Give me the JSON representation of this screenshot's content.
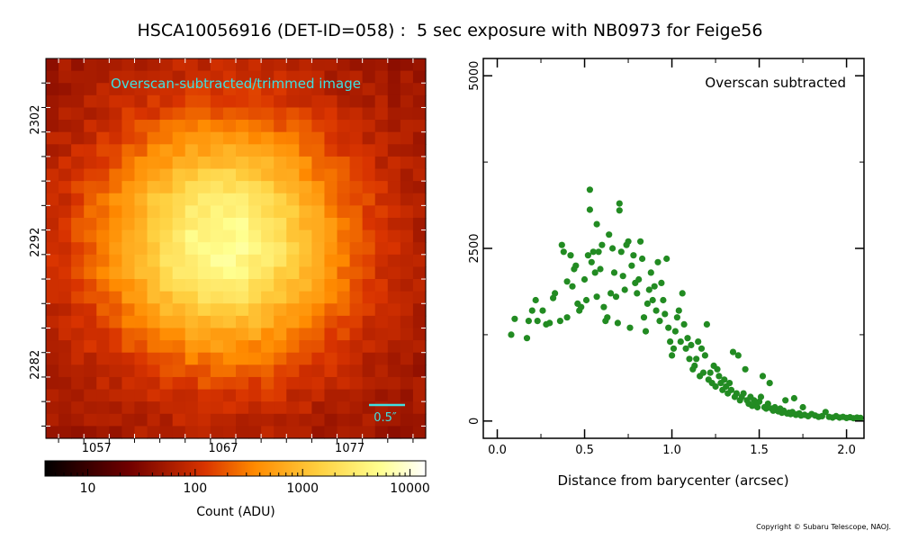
{
  "title": "HSCA10056916 (DET-ID=058) :  5 sec exposure with NB0973 for Feige56",
  "copyright": "Copyright © Subaru Telescope, NAOJ.",
  "colors": {
    "scatter": "#228b22",
    "label_cyan": "#40e0e0",
    "frame": "#000000"
  },
  "chart_data": [
    {
      "type": "heatmap",
      "title": "Overscan-subtracted/trimmed image",
      "colormap": "afmhot",
      "x_ticks": [
        "1057",
        "1067",
        "1077"
      ],
      "y_ticks": [
        "2302",
        "2292",
        "2282"
      ],
      "xlim": [
        1053,
        1083
      ],
      "ylim": [
        2276,
        2307
      ],
      "star_center": {
        "x": 1067,
        "y": 2292
      },
      "scale_bar_label": "0.5″",
      "colorbar": {
        "label": "Count (ADU)",
        "scale": "log",
        "range": [
          4,
          14000
        ],
        "ticks": [
          "10",
          "100",
          "1000",
          "10000"
        ]
      }
    },
    {
      "type": "scatter",
      "annotation": "Overscan subtracted",
      "xlabel": "Distance from barycenter (arcsec)",
      "ylabel": "",
      "xlim": [
        -0.08,
        2.1
      ],
      "ylim": [
        -250,
        5250
      ],
      "x_ticks": [
        0.0,
        0.5,
        1.0,
        1.5,
        2.0
      ],
      "x_tick_labels": [
        "0.0",
        "0.5",
        "1.0",
        "1.5",
        "2.0"
      ],
      "y_ticks": [
        0,
        2500,
        5000
      ],
      "y_tick_labels": [
        "0",
        "2500",
        "5000"
      ],
      "series": [
        {
          "values": [
            [
              0.08,
              1250
            ],
            [
              0.1,
              1480
            ],
            [
              0.17,
              1200
            ],
            [
              0.18,
              1450
            ],
            [
              0.2,
              1600
            ],
            [
              0.22,
              1750
            ],
            [
              0.23,
              1450
            ],
            [
              0.26,
              1600
            ],
            [
              0.28,
              1400
            ],
            [
              0.3,
              1420
            ],
            [
              0.32,
              1780
            ],
            [
              0.33,
              1850
            ],
            [
              0.36,
              1450
            ],
            [
              0.37,
              2550
            ],
            [
              0.38,
              2450
            ],
            [
              0.4,
              2020
            ],
            [
              0.4,
              1500
            ],
            [
              0.42,
              2400
            ],
            [
              0.43,
              1950
            ],
            [
              0.44,
              2200
            ],
            [
              0.45,
              2250
            ],
            [
              0.46,
              1700
            ],
            [
              0.47,
              1600
            ],
            [
              0.48,
              1650
            ],
            [
              0.5,
              2050
            ],
            [
              0.51,
              1750
            ],
            [
              0.52,
              2400
            ],
            [
              0.53,
              3350
            ],
            [
              0.53,
              3060
            ],
            [
              0.54,
              2300
            ],
            [
              0.55,
              2450
            ],
            [
              0.56,
              2150
            ],
            [
              0.57,
              1800
            ],
            [
              0.57,
              2850
            ],
            [
              0.58,
              2450
            ],
            [
              0.59,
              2200
            ],
            [
              0.6,
              2550
            ],
            [
              0.61,
              1650
            ],
            [
              0.62,
              1450
            ],
            [
              0.63,
              1500
            ],
            [
              0.64,
              2700
            ],
            [
              0.65,
              1850
            ],
            [
              0.66,
              2500
            ],
            [
              0.67,
              2150
            ],
            [
              0.68,
              1800
            ],
            [
              0.69,
              1420
            ],
            [
              0.7,
              3150
            ],
            [
              0.7,
              3050
            ],
            [
              0.71,
              2450
            ],
            [
              0.72,
              2100
            ],
            [
              0.73,
              1900
            ],
            [
              0.74,
              2550
            ],
            [
              0.75,
              2600
            ],
            [
              0.76,
              1350
            ],
            [
              0.77,
              2250
            ],
            [
              0.78,
              2400
            ],
            [
              0.79,
              2000
            ],
            [
              0.8,
              1850
            ],
            [
              0.81,
              2050
            ],
            [
              0.82,
              2600
            ],
            [
              0.83,
              2350
            ],
            [
              0.84,
              1500
            ],
            [
              0.85,
              1300
            ],
            [
              0.86,
              1700
            ],
            [
              0.87,
              1900
            ],
            [
              0.88,
              2150
            ],
            [
              0.89,
              1750
            ],
            [
              0.9,
              1950
            ],
            [
              0.91,
              1600
            ],
            [
              0.92,
              2300
            ],
            [
              0.93,
              1450
            ],
            [
              0.94,
              2000
            ],
            [
              0.95,
              1750
            ],
            [
              0.96,
              1550
            ],
            [
              0.97,
              2350
            ],
            [
              0.98,
              1350
            ],
            [
              0.99,
              1150
            ],
            [
              1.0,
              950
            ],
            [
              1.01,
              1050
            ],
            [
              1.02,
              1300
            ],
            [
              1.03,
              1500
            ],
            [
              1.04,
              1600
            ],
            [
              1.05,
              1150
            ],
            [
              1.06,
              1850
            ],
            [
              1.07,
              1400
            ],
            [
              1.08,
              1050
            ],
            [
              1.09,
              1200
            ],
            [
              1.1,
              900
            ],
            [
              1.11,
              1100
            ],
            [
              1.12,
              750
            ],
            [
              1.13,
              800
            ],
            [
              1.14,
              900
            ],
            [
              1.15,
              1150
            ],
            [
              1.16,
              650
            ],
            [
              1.17,
              1050
            ],
            [
              1.18,
              700
            ],
            [
              1.19,
              950
            ],
            [
              1.2,
              1400
            ],
            [
              1.21,
              600
            ],
            [
              1.22,
              700
            ],
            [
              1.23,
              550
            ],
            [
              1.24,
              800
            ],
            [
              1.25,
              500
            ],
            [
              1.26,
              750
            ],
            [
              1.27,
              650
            ],
            [
              1.28,
              550
            ],
            [
              1.29,
              450
            ],
            [
              1.3,
              600
            ],
            [
              1.31,
              500
            ],
            [
              1.32,
              400
            ],
            [
              1.33,
              550
            ],
            [
              1.34,
              450
            ],
            [
              1.35,
              1000
            ],
            [
              1.36,
              350
            ],
            [
              1.37,
              400
            ],
            [
              1.38,
              950
            ],
            [
              1.39,
              300
            ],
            [
              1.4,
              350
            ],
            [
              1.41,
              400
            ],
            [
              1.42,
              750
            ],
            [
              1.43,
              300
            ],
            [
              1.44,
              250
            ],
            [
              1.45,
              350
            ],
            [
              1.46,
              220
            ],
            [
              1.47,
              300
            ],
            [
              1.48,
              250
            ],
            [
              1.49,
              200
            ],
            [
              1.5,
              280
            ],
            [
              1.51,
              350
            ],
            [
              1.52,
              650
            ],
            [
              1.53,
              200
            ],
            [
              1.54,
              180
            ],
            [
              1.55,
              250
            ],
            [
              1.56,
              550
            ],
            [
              1.57,
              180
            ],
            [
              1.58,
              150
            ],
            [
              1.59,
              200
            ],
            [
              1.6,
              160
            ],
            [
              1.61,
              140
            ],
            [
              1.62,
              180
            ],
            [
              1.63,
              120
            ],
            [
              1.64,
              150
            ],
            [
              1.65,
              300
            ],
            [
              1.66,
              110
            ],
            [
              1.67,
              120
            ],
            [
              1.68,
              100
            ],
            [
              1.69,
              130
            ],
            [
              1.7,
              330
            ],
            [
              1.71,
              90
            ],
            [
              1.72,
              100
            ],
            [
              1.73,
              110
            ],
            [
              1.74,
              80
            ],
            [
              1.75,
              200
            ],
            [
              1.76,
              90
            ],
            [
              1.78,
              70
            ],
            [
              1.8,
              100
            ],
            [
              1.82,
              80
            ],
            [
              1.84,
              60
            ],
            [
              1.86,
              70
            ],
            [
              1.88,
              130
            ],
            [
              1.9,
              60
            ],
            [
              1.92,
              50
            ],
            [
              1.94,
              70
            ],
            [
              1.96,
              50
            ],
            [
              1.98,
              60
            ],
            [
              2.0,
              45
            ],
            [
              2.02,
              55
            ],
            [
              2.04,
              40
            ],
            [
              2.06,
              50
            ],
            [
              2.08,
              45
            ]
          ]
        }
      ]
    }
  ]
}
